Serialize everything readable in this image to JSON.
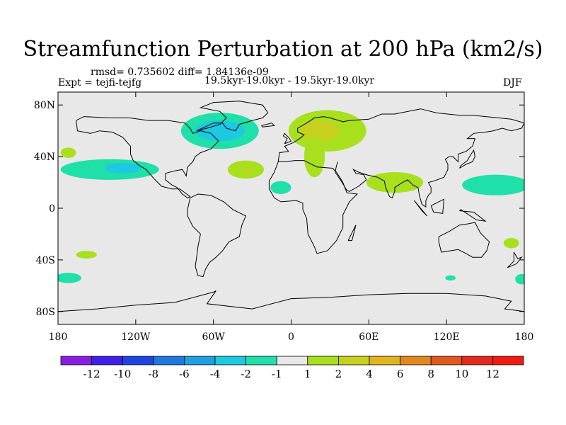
{
  "chart_data": {
    "type": "heatmap",
    "title": "Streamfunction Perturbation at 200 hPa (km2/s)",
    "stats_line": "rmsd= 0.735602 diff= 1.84136e-09",
    "left_label": "Expt = tejfi-tejfg",
    "center_label": "19.5kyr-19.0kyr - 19.5kyr-19.0kyr",
    "right_label": "DJF",
    "x_ticks": [
      {
        "lon": -180,
        "label": "180"
      },
      {
        "lon": -120,
        "label": "120W"
      },
      {
        "lon": -60,
        "label": "60W"
      },
      {
        "lon": 0,
        "label": "0"
      },
      {
        "lon": 60,
        "label": "60E"
      },
      {
        "lon": 120,
        "label": "120E"
      },
      {
        "lon": 180,
        "label": "180"
      }
    ],
    "y_ticks": [
      {
        "lat": 80,
        "label": "80N"
      },
      {
        "lat": 40,
        "label": "40N"
      },
      {
        "lat": 0,
        "label": "0"
      },
      {
        "lat": -40,
        "label": "40S"
      },
      {
        "lat": -80,
        "label": "80S"
      }
    ],
    "xlim": [
      -180,
      180
    ],
    "ylim": [
      -90,
      90
    ],
    "colorbar": {
      "labels": [
        "-12",
        "-10",
        "-8",
        "-6",
        "-4",
        "-2",
        "-1",
        "1",
        "2",
        "4",
        "6",
        "8",
        "10",
        "12"
      ],
      "colors": [
        "#8a1ee0",
        "#3f1ee8",
        "#1e44e0",
        "#1e78e0",
        "#1ea0e0",
        "#1ec8e0",
        "#1ee0a8",
        "#e8e8e8",
        "#a8e01e",
        "#c8d01e",
        "#e0b41e",
        "#e0881e",
        "#e0581e",
        "#e02a1e",
        "#f01a10"
      ]
    },
    "anomalies": [
      {
        "lon": -55,
        "lat": 60,
        "rlon": 30,
        "rlat": 14,
        "value": -1.5
      },
      {
        "lon": -55,
        "lat": 60,
        "rlon": 19,
        "rlat": 8,
        "value": -3
      },
      {
        "lon": 28,
        "lat": 60,
        "rlon": 30,
        "rlat": 16,
        "value": 1.5
      },
      {
        "lon": 22,
        "lat": 60,
        "rlon": 15,
        "rlat": 8,
        "value": 3
      },
      {
        "lon": 18,
        "lat": 40,
        "rlon": 8,
        "rlat": 16,
        "value": 1.5
      },
      {
        "lon": -140,
        "lat": 30,
        "rlon": 38,
        "rlat": 8,
        "value": -1.5
      },
      {
        "lon": -130,
        "lat": 31,
        "rlon": 14,
        "rlat": 4,
        "value": -3
      },
      {
        "lon": -172,
        "lat": 43,
        "rlon": 6,
        "rlat": 4,
        "value": 1.5
      },
      {
        "lon": -35,
        "lat": 30,
        "rlon": 14,
        "rlat": 7,
        "value": 1.5
      },
      {
        "lon": -33,
        "lat": 29,
        "rlon": 3,
        "rlat": 2,
        "value": 3
      },
      {
        "lon": -8,
        "lat": 16,
        "rlon": 8,
        "rlat": 5,
        "value": -1.5
      },
      {
        "lon": 80,
        "lat": 20,
        "rlon": 22,
        "rlat": 8,
        "value": 1.5
      },
      {
        "lon": 158,
        "lat": 18,
        "rlon": 26,
        "rlat": 8,
        "value": -1.5
      },
      {
        "lon": -158,
        "lat": -36,
        "rlon": 8,
        "rlat": 3,
        "value": 1.5
      },
      {
        "lon": -172,
        "lat": -54,
        "rlon": 10,
        "rlat": 4,
        "value": -1.5
      },
      {
        "lon": 170,
        "lat": -27,
        "rlon": 6,
        "rlat": 4,
        "value": 1.5
      },
      {
        "lon": 178,
        "lat": -55,
        "rlon": 5,
        "rlat": 4,
        "value": -1.5
      },
      {
        "lon": 123,
        "lat": -54,
        "rlon": 4,
        "rlat": 2,
        "value": -1.5
      }
    ]
  }
}
